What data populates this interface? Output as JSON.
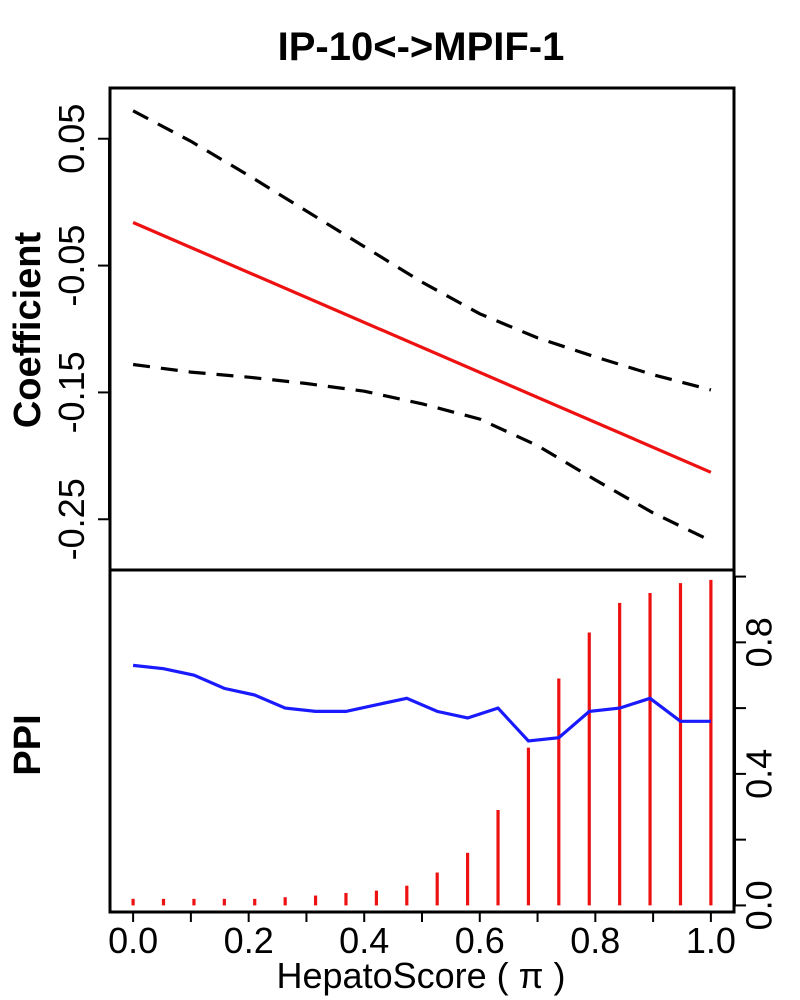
{
  "chart_data": [
    {
      "type": "line",
      "title": "IP-10<->MPIF-1",
      "xlabel": "",
      "ylabel": "Coefficient",
      "xlim": [
        -0.04,
        1.04
      ],
      "ylim": [
        -0.29,
        0.09
      ],
      "yticks": [
        "0.05",
        "-0.05",
        "-0.15",
        "-0.25"
      ],
      "ytick_values": [
        0.05,
        -0.05,
        -0.15,
        -0.25
      ],
      "grid": false,
      "series": [
        {
          "style": "solid",
          "color": "#ee1111",
          "x": [
            0.0,
            1.0
          ],
          "y": [
            -0.016,
            -0.213
          ]
        },
        {
          "style": "dashed",
          "color": "#000000",
          "x": [
            0.0,
            0.1,
            0.2,
            0.3,
            0.4,
            0.5,
            0.6,
            0.7,
            0.8,
            0.9,
            1.0
          ],
          "y": [
            0.072,
            0.048,
            0.021,
            -0.007,
            -0.035,
            -0.063,
            -0.088,
            -0.107,
            -0.122,
            -0.136,
            -0.148
          ]
        },
        {
          "style": "dashed",
          "color": "#000000",
          "x": [
            0.0,
            0.1,
            0.2,
            0.3,
            0.4,
            0.5,
            0.6,
            0.7,
            0.8,
            0.9,
            1.0
          ],
          "y": [
            -0.128,
            -0.134,
            -0.138,
            -0.143,
            -0.149,
            -0.159,
            -0.171,
            -0.192,
            -0.219,
            -0.245,
            -0.267
          ]
        }
      ]
    },
    {
      "type": "bar",
      "ylabel": "PPI",
      "xlabel": "HepatoScore ( π )",
      "xlim": [
        -0.04,
        1.04
      ],
      "ylim": [
        -0.02,
        1.02
      ],
      "xticks": [
        "0.0",
        "0.2",
        "0.4",
        "0.6",
        "0.8",
        "1.0"
      ],
      "xtick_values": [
        0.0,
        0.2,
        0.4,
        0.6,
        0.8,
        1.0
      ],
      "yticks": [
        "0.0",
        "0.4",
        "0.8"
      ],
      "ytick_values": [
        0.0,
        0.4,
        0.8
      ],
      "y_axis_side": "right",
      "grid": false,
      "bars": {
        "color": "#ee1111",
        "x": [
          0.0,
          0.0526,
          0.1053,
          0.1579,
          0.2105,
          0.2632,
          0.3158,
          0.3684,
          0.4211,
          0.4737,
          0.5263,
          0.5789,
          0.6316,
          0.6842,
          0.7368,
          0.7895,
          0.8421,
          0.8947,
          0.9474,
          1.0
        ],
        "values": [
          0.02,
          0.02,
          0.02,
          0.02,
          0.02,
          0.025,
          0.03,
          0.038,
          0.045,
          0.06,
          0.1,
          0.16,
          0.29,
          0.48,
          0.69,
          0.83,
          0.92,
          0.95,
          0.98,
          0.99
        ]
      },
      "series": [
        {
          "name": "",
          "color": "#1a1aff",
          "x": [
            0.0,
            0.0526,
            0.1053,
            0.1579,
            0.2105,
            0.2632,
            0.3158,
            0.3684,
            0.4211,
            0.4737,
            0.5263,
            0.5789,
            0.6316,
            0.6842,
            0.7368,
            0.7895,
            0.8421,
            0.8947,
            0.9474,
            1.0
          ],
          "y": [
            0.73,
            0.72,
            0.7,
            0.66,
            0.64,
            0.6,
            0.59,
            0.59,
            0.61,
            0.63,
            0.59,
            0.57,
            0.6,
            0.5,
            0.51,
            0.59,
            0.6,
            0.63,
            0.56,
            0.56
          ]
        }
      ]
    }
  ]
}
